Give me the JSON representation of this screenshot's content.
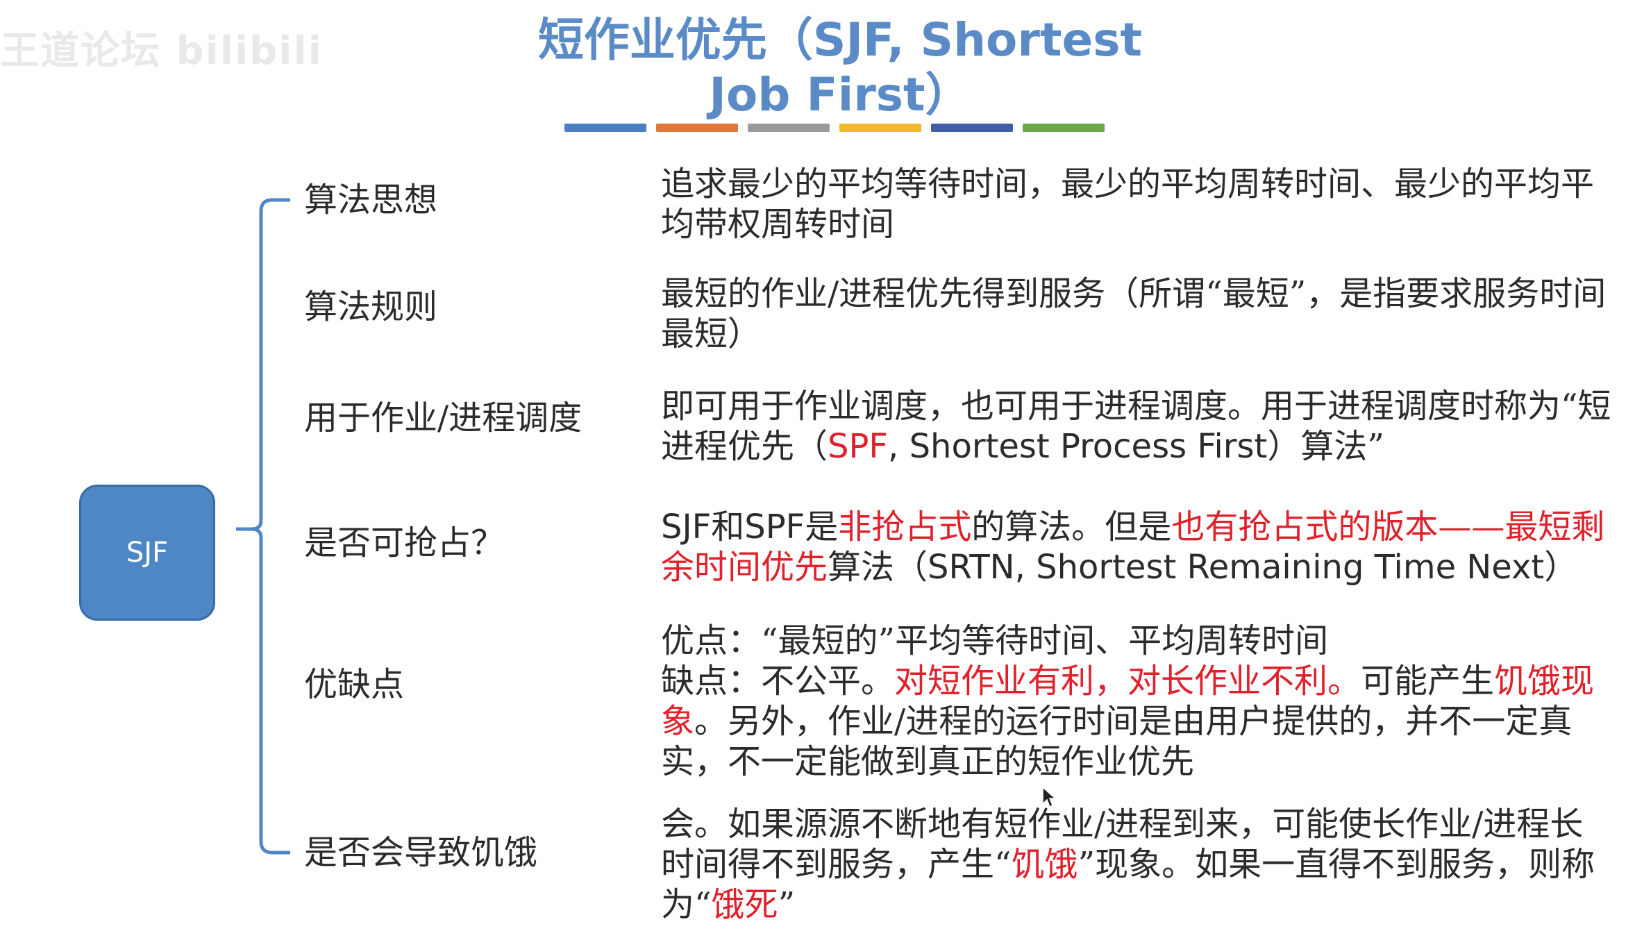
{
  "watermark": {
    "text": "王道论坛 bilibili"
  },
  "title": {
    "line1_cn": "短作业优先（",
    "line1_en": "SJF, Shortest",
    "line2_en": "Job First",
    "line2_close": "）"
  },
  "title_bar_colors": [
    "#4a7fc4",
    "#e0783a",
    "#9a9a9a",
    "#f3b72b",
    "#3e5ea8",
    "#6aa84a"
  ],
  "root": {
    "label": "SJF"
  },
  "rows": [
    {
      "label": "算法思想",
      "desc": [
        {
          "text": "追求最少的平均等待时间，最少的平均周转时间、最少的平均平均带权周转时间"
        }
      ]
    },
    {
      "label": "算法规则",
      "desc": [
        {
          "text": "最短的作业/进程优先得到服务（所谓“最短”，是指要求服务时间最短）"
        }
      ]
    },
    {
      "label": "用于作业/进程调度",
      "desc": [
        {
          "text": "即可用于作业调度，也可用于进程调度。用于进程调度时称为“短进程优先（"
        },
        {
          "text": "SPF",
          "red": true,
          "latin": true
        },
        {
          "text": ", Shortest Process First",
          "latin": true
        },
        {
          "text": "）算法”"
        }
      ]
    },
    {
      "label": "是否可抢占？",
      "desc": [
        {
          "text": "SJF和SPF",
          "latin": true
        },
        {
          "text": "是"
        },
        {
          "text": "非抢占式",
          "red": true
        },
        {
          "text": "的算法。但是"
        },
        {
          "text": "也有抢占式的版本——最短剩余时间优先",
          "red": true
        },
        {
          "text": "算法（"
        },
        {
          "text": "SRTN, Shortest Remaining Time Next",
          "latin": true
        },
        {
          "text": "）"
        }
      ]
    },
    {
      "label": "优缺点",
      "desc": [
        {
          "text": "优点：“最短的”平均等待时间、平均周转时间"
        },
        {
          "text": "缺点：不公平。",
          "newline": true
        },
        {
          "text": "对短作业有利，对长作业不利。",
          "red": true
        },
        {
          "text": "可能产生"
        },
        {
          "text": "饥饿现象",
          "red": true
        },
        {
          "text": "。另外，作业/进程的运行时间是由用户提供的，并不一定真实，不一定能做到真正的短作业优先"
        }
      ]
    },
    {
      "label": "是否会导致饥饿",
      "desc": [
        {
          "text": "会。如果源源不断地有短作业/进程到来，可能使长作业/进程长时间得不到服务，产生“"
        },
        {
          "text": "饥饿",
          "red": true
        },
        {
          "text": "”现象。如果一直得不到服务，则称为“"
        },
        {
          "text": "饿死",
          "red": true
        },
        {
          "text": "”"
        }
      ]
    }
  ]
}
